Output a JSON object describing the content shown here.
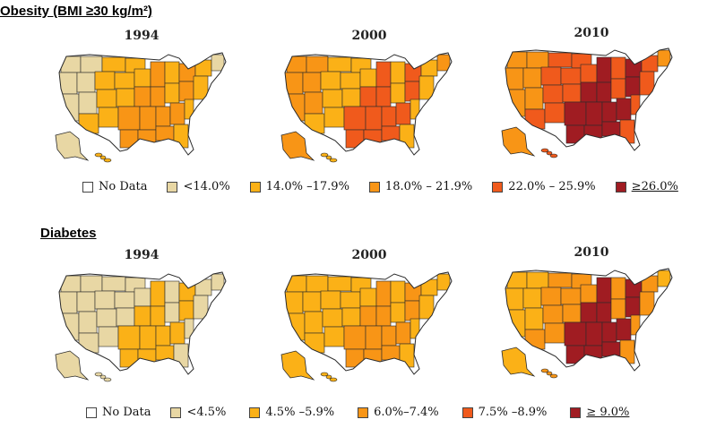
{
  "colors": {
    "no_data": "#ffffff",
    "lt14": "#e8d7a4",
    "o14_17": "#fbb117",
    "o18_21": "#f89516",
    "o22_25": "#f05a1c",
    "o26": "#a01c22",
    "border": "#2a2a2a"
  },
  "sections": [
    {
      "title": "Obesity (BMI ≥30 kg/m²)",
      "maps": [
        {
          "year": "1994",
          "base_color": "o14_17",
          "light_color": "lt14",
          "dark_color": "o18_21"
        },
        {
          "year": "2000",
          "base_color": "o14_17",
          "light_color": "o18_21",
          "dark_color": "o22_25"
        },
        {
          "year": "2010",
          "base_color": "o22_25",
          "light_color": "o18_21",
          "dark_color": "o26"
        }
      ],
      "legend": [
        {
          "color": "no_data",
          "label": "No Data"
        },
        {
          "color": "lt14",
          "label": "<14.0%"
        },
        {
          "color": "o14_17",
          "label": "14.0% –17.9%"
        },
        {
          "color": "o18_21",
          "label": "18.0% – 21.9%"
        },
        {
          "color": "o22_25",
          "label": "22.0% – 25.9%"
        },
        {
          "color": "o26",
          "label": "≥26.0%"
        }
      ]
    },
    {
      "title": "Diabetes",
      "maps": [
        {
          "year": "1994",
          "base_color": "lt14",
          "light_color": "lt14",
          "dark_color": "o14_17"
        },
        {
          "year": "2000",
          "base_color": "o14_17",
          "light_color": "o14_17",
          "dark_color": "o18_21"
        },
        {
          "year": "2010",
          "base_color": "o18_21",
          "light_color": "o14_17",
          "dark_color": "o26"
        }
      ],
      "legend": [
        {
          "color": "no_data",
          "label": "No Data"
        },
        {
          "color": "lt14",
          "label": "<4.5%"
        },
        {
          "color": "o14_17",
          "label": "4.5% –5.9%"
        },
        {
          "color": "o18_21",
          "label": "6.0%–7.4%"
        },
        {
          "color": "o22_25",
          "label": "7.5% –8.9%"
        },
        {
          "color": "o26",
          "label": "≥ 9.0%"
        }
      ]
    }
  ]
}
